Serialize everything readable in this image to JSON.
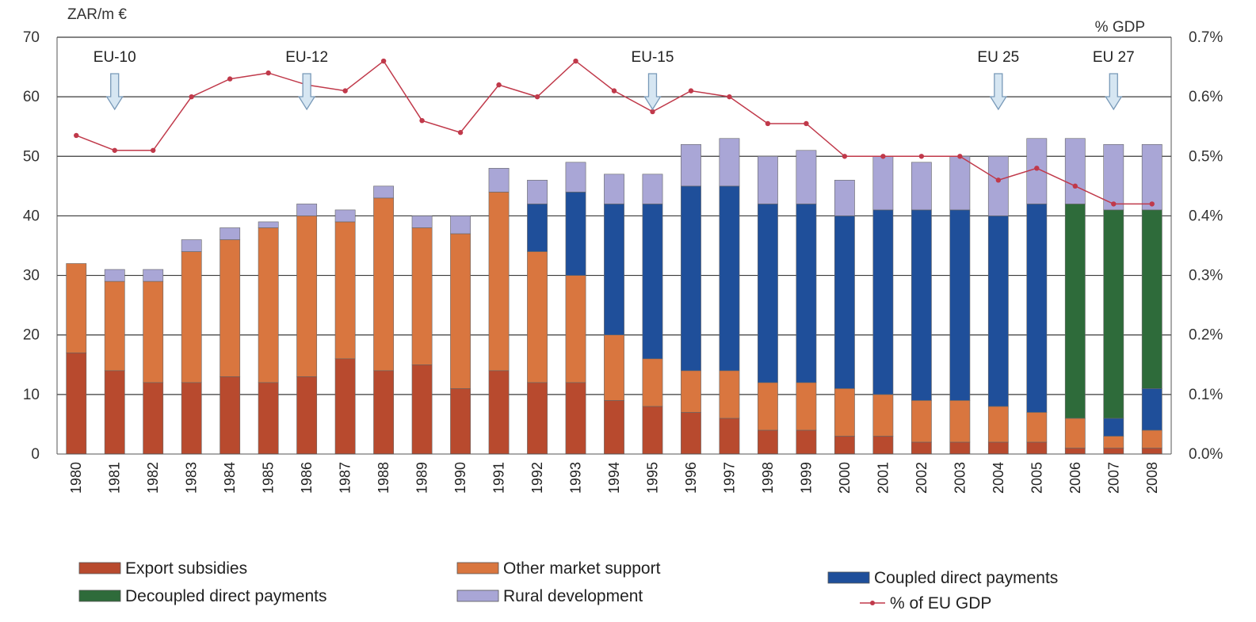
{
  "chart_data": {
    "type": "bar",
    "stacked": true,
    "y_unit_label": "ZAR/m €",
    "y2_unit_label": "% GDP",
    "ylim": [
      0,
      70
    ],
    "y_ticks": [
      "0",
      "10",
      "20",
      "30",
      "40",
      "50",
      "60",
      "70"
    ],
    "y2lim": [
      0,
      0.7
    ],
    "y2_ticks": [
      "0.0%",
      "0.1%",
      "0.2%",
      "0.3%",
      "0.4%",
      "0.5%",
      "0.6%",
      "0.7%"
    ],
    "grid": true,
    "legend_position": "bottom",
    "categories": [
      "1980",
      "1981",
      "1982",
      "1983",
      "1984",
      "1985",
      "1986",
      "1987",
      "1988",
      "1989",
      "1990",
      "1991",
      "1992",
      "1993",
      "1994",
      "1995",
      "1996",
      "1997",
      "1998",
      "1999",
      "2000",
      "2001",
      "2002",
      "2003",
      "2004",
      "2005",
      "2006",
      "2007",
      "2008"
    ],
    "series": [
      {
        "name": "Export subsidies",
        "color": "#b84a2e",
        "values": [
          17,
          14,
          12,
          12,
          13,
          12,
          13,
          16,
          14,
          15,
          11,
          14,
          12,
          12,
          9,
          8,
          7,
          6,
          4,
          4,
          3,
          3,
          2,
          2,
          2,
          2,
          1,
          1,
          1
        ]
      },
      {
        "name": "Other market support",
        "color": "#d9763f",
        "values": [
          15,
          15,
          17,
          22,
          23,
          26,
          27,
          23,
          29,
          23,
          26,
          30,
          22,
          18,
          11,
          8,
          7,
          8,
          8,
          8,
          8,
          7,
          7,
          7,
          6,
          5,
          5,
          2,
          3
        ]
      },
      {
        "name": "Coupled direct payments",
        "color": "#1f4f9a",
        "values": [
          0,
          0,
          0,
          0,
          0,
          0,
          0,
          0,
          0,
          0,
          0,
          0,
          8,
          14,
          22,
          26,
          31,
          31,
          30,
          30,
          29,
          31,
          32,
          32,
          32,
          35,
          0,
          3,
          7
        ]
      },
      {
        "name": "Decoupled direct payments",
        "color": "#2e6b3a",
        "values": [
          0,
          0,
          0,
          0,
          0,
          0,
          0,
          0,
          0,
          0,
          0,
          0,
          0,
          0,
          0,
          0,
          0,
          0,
          0,
          0,
          0,
          0,
          0,
          0,
          0,
          0,
          36,
          35,
          30
        ]
      },
      {
        "name": "Rural development",
        "color": "#a9a6d6",
        "values": [
          0,
          2,
          2,
          2,
          2,
          1,
          2,
          2,
          2,
          2,
          3,
          4,
          4,
          5,
          5,
          5,
          7,
          8,
          8,
          9,
          6,
          9,
          8,
          9,
          10,
          11,
          11,
          11,
          11
        ]
      }
    ],
    "line_series": {
      "name": "% of EU GDP",
      "axis": "right",
      "color": "#c0394a",
      "values": [
        0.535,
        0.51,
        0.51,
        0.6,
        0.63,
        0.64,
        0.62,
        0.61,
        0.66,
        0.56,
        0.54,
        0.62,
        0.6,
        0.66,
        0.61,
        0.575,
        0.61,
        0.6,
        0.555,
        0.555,
        0.5,
        0.5,
        0.5,
        0.5,
        0.46,
        0.48,
        0.45,
        0.42,
        0.42
      ]
    },
    "annotations": [
      {
        "label": "EU-10",
        "category": "1981"
      },
      {
        "label": "EU-12",
        "category": "1986"
      },
      {
        "label": "EU-15",
        "category": "1995"
      },
      {
        "label": "EU 25",
        "category": "2004"
      },
      {
        "label": "EU 27",
        "category": "2007"
      }
    ]
  },
  "legend": {
    "items": [
      {
        "label": "Export subsidies",
        "kind": "box",
        "color": "#b84a2e"
      },
      {
        "label": "Other market support",
        "kind": "box",
        "color": "#d9763f"
      },
      {
        "label": "Coupled direct payments",
        "kind": "box",
        "color": "#1f4f9a"
      },
      {
        "label": "Decoupled direct payments",
        "kind": "box",
        "color": "#2e6b3a"
      },
      {
        "label": "Rural development",
        "kind": "box",
        "color": "#a9a6d6"
      },
      {
        "label": "% of EU GDP",
        "kind": "line",
        "color": "#c0394a"
      }
    ]
  }
}
